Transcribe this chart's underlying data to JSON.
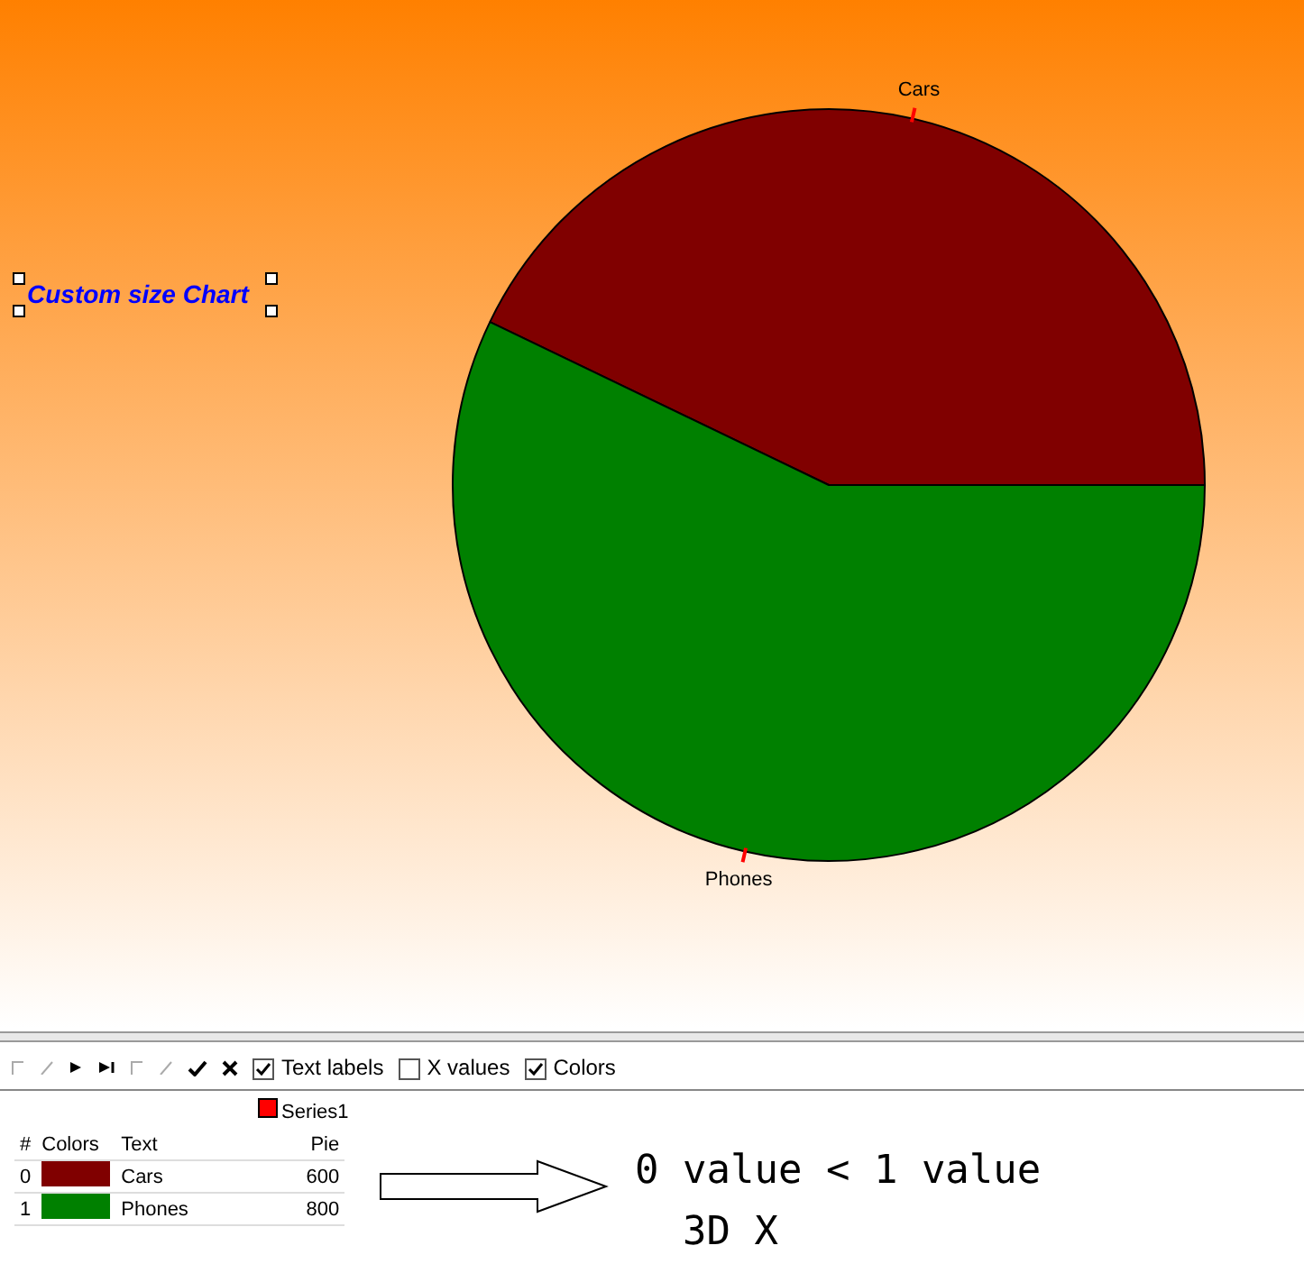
{
  "chart_data": {
    "type": "pie",
    "title": "Custom size Chart",
    "categories": [
      "Cars",
      "Phones"
    ],
    "values": [
      600,
      800
    ],
    "colors": [
      "#800000",
      "#008000"
    ],
    "data_labels": true,
    "legend": "bottom left",
    "annotations": [
      "Series1",
      "#",
      "Colors",
      "Text",
      "Pie",
      "0 value < 1 value",
      "3D X",
      "Text labels",
      "X values",
      "Colors",
      "0",
      "1"
    ]
  }
}
